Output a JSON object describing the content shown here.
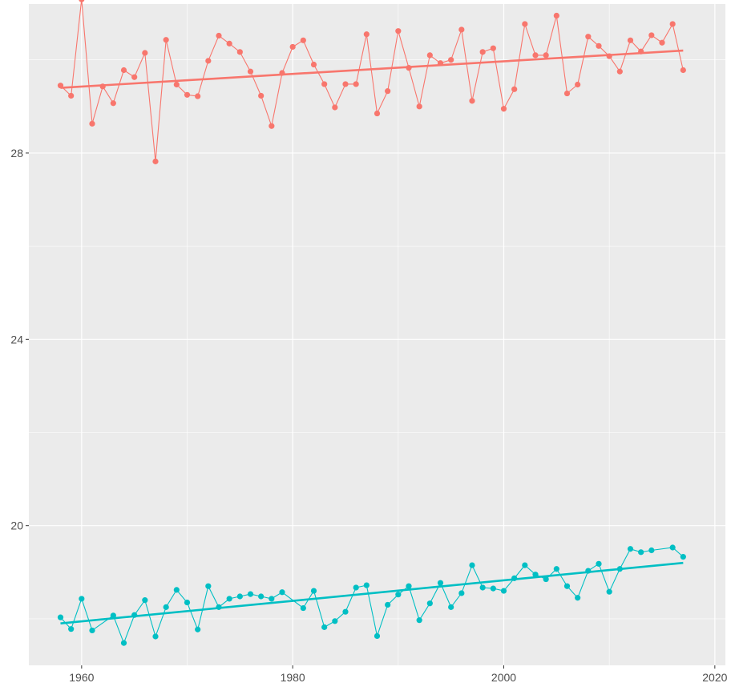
{
  "chart_data": {
    "type": "line",
    "title": "",
    "xlabel": "",
    "ylabel": "",
    "xlim": [
      1955,
      2021
    ],
    "ylim": [
      17.0,
      31.2
    ],
    "x_ticks": [
      1960,
      1980,
      2000,
      2020
    ],
    "y_ticks": [
      20,
      24,
      28
    ],
    "grid": true,
    "legend": "none",
    "background_color": "#ebebeb",
    "series": [
      {
        "color": "#f8766d",
        "x": [
          1958,
          1959,
          1960,
          1961,
          1962,
          1963,
          1964,
          1965,
          1966,
          1967,
          1968,
          1969,
          1970,
          1971,
          1972,
          1973,
          1974,
          1975,
          1976,
          1977,
          1978,
          1979,
          1980,
          1981,
          1982,
          1983,
          1984,
          1985,
          1986,
          1987,
          1988,
          1989,
          1990,
          1991,
          1992,
          1993,
          1994,
          1995,
          1996,
          1997,
          1998,
          1999,
          2000,
          2001,
          2002,
          2003,
          2004,
          2005,
          2006,
          2007,
          2008,
          2009,
          2010,
          2011,
          2012,
          2013,
          2014,
          2015,
          2016,
          2017
        ],
        "y": [
          29.45,
          29.23,
          31.3,
          28.63,
          29.43,
          29.07,
          29.78,
          29.63,
          30.15,
          27.82,
          30.43,
          29.47,
          29.25,
          29.22,
          29.98,
          30.52,
          30.35,
          30.17,
          29.75,
          29.23,
          28.58,
          29.72,
          30.28,
          30.42,
          29.9,
          29.48,
          28.98,
          29.48,
          29.48,
          30.55,
          28.85,
          29.33,
          30.62,
          29.83,
          29.0,
          30.1,
          29.93,
          30.0,
          30.65,
          29.12,
          30.17,
          30.25,
          28.95,
          29.37,
          30.77,
          30.1,
          30.1,
          30.95,
          29.28,
          29.47,
          30.5,
          30.3,
          30.08,
          29.75,
          30.42,
          30.18,
          30.53,
          30.37,
          30.77,
          29.78
        ],
        "trend": {
          "x": [
            1958,
            2017
          ],
          "y": [
            29.4,
            30.2
          ]
        }
      },
      {
        "color": "#00bfc4",
        "x": [
          1958,
          1959,
          1960,
          1961,
          1963,
          1964,
          1965,
          1966,
          1967,
          1968,
          1969,
          1970,
          1971,
          1972,
          1973,
          1974,
          1975,
          1976,
          1977,
          1978,
          1979,
          1981,
          1982,
          1983,
          1984,
          1985,
          1986,
          1987,
          1988,
          1989,
          1990,
          1991,
          1992,
          1993,
          1994,
          1995,
          1996,
          1997,
          1998,
          1999,
          2000,
          2001,
          2002,
          2003,
          2004,
          2005,
          2006,
          2007,
          2008,
          2009,
          2010,
          2011,
          2012,
          2013,
          2014,
          2016,
          2017
        ],
        "y": [
          18.03,
          17.78,
          18.43,
          17.75,
          18.07,
          17.48,
          18.08,
          18.4,
          17.62,
          18.25,
          18.62,
          18.35,
          17.77,
          18.7,
          18.25,
          18.43,
          18.48,
          18.53,
          18.48,
          18.43,
          18.57,
          18.23,
          18.6,
          17.82,
          17.95,
          18.15,
          18.67,
          18.72,
          17.63,
          18.3,
          18.52,
          18.7,
          17.97,
          18.33,
          18.77,
          18.25,
          18.55,
          19.15,
          18.67,
          18.65,
          18.6,
          18.87,
          19.15,
          18.95,
          18.85,
          19.07,
          18.7,
          18.45,
          19.03,
          19.18,
          18.58,
          19.07,
          19.5,
          19.43,
          19.47,
          19.53,
          19.33
        ],
        "trend": {
          "x": [
            1958,
            2017
          ],
          "y": [
            17.9,
            19.2
          ]
        }
      }
    ]
  }
}
